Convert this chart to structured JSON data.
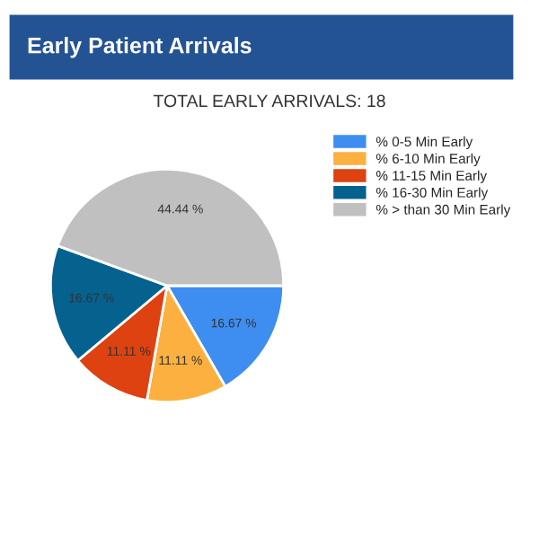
{
  "chart_data": {
    "type": "pie",
    "title": "Early Patient Arrivals",
    "subtitle": "TOTAL EARLY ARRIVALS: 18",
    "categories": [
      "% 0-5 Min Early",
      "% 6-10 Min Early",
      "% 11-15 Min Early",
      "% 16-30 Min Early",
      "% > than 30 Min Early"
    ],
    "values": [
      16.67,
      11.11,
      11.11,
      16.67,
      44.44
    ],
    "colors": [
      "#3d8ef0",
      "#fbb040",
      "#dd4210",
      "#05628f",
      "#c0c0c0"
    ],
    "value_labels": [
      "16.67 %",
      "11.11 %",
      "11.11 %",
      "16.67 %",
      "44.44 %"
    ],
    "legend": "top right"
  }
}
